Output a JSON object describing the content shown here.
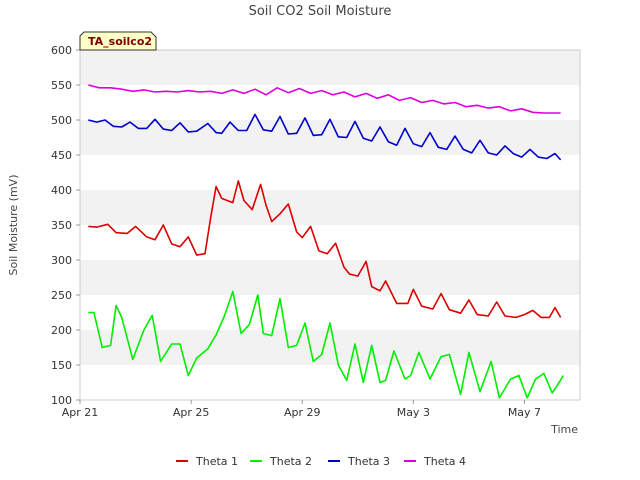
{
  "chart_data": {
    "type": "line",
    "title": "Soil CO2 Soil Moisture",
    "xlabel": "Time",
    "ylabel": "Soil Moisture (mV)",
    "station_tag": "TA_soilco2",
    "ylim": [
      100,
      600
    ],
    "yticks": [
      100,
      150,
      200,
      250,
      300,
      350,
      400,
      450,
      500,
      550,
      600
    ],
    "xlim": [
      0,
      18.0
    ],
    "xticks": [
      {
        "label": "Apr 21",
        "value": 0
      },
      {
        "label": "Apr 25",
        "value": 4
      },
      {
        "label": "Apr 29",
        "value": 8
      },
      {
        "label": "May 3",
        "value": 12
      },
      {
        "label": "May 7",
        "value": 16
      }
    ],
    "x_unit": "days since Apr 21 00:00",
    "grid": "horizontal alternating bands",
    "legend_position": "bottom",
    "series": [
      {
        "name": "Theta 1",
        "color": "#dd0000",
        "x": [
          0.3,
          0.6,
          1.0,
          1.3,
          1.7,
          2.0,
          2.4,
          2.7,
          3.0,
          3.3,
          3.6,
          3.9,
          4.2,
          4.5,
          4.7,
          4.9,
          5.1,
          5.3,
          5.5,
          5.7,
          5.9,
          6.2,
          6.5,
          6.7,
          6.9,
          7.2,
          7.5,
          7.8,
          8.0,
          8.3,
          8.6,
          8.9,
          9.2,
          9.5,
          9.7,
          10.0,
          10.3,
          10.5,
          10.8,
          11.0,
          11.4,
          11.8,
          12.0,
          12.3,
          12.7,
          13.0,
          13.3,
          13.7,
          14.0,
          14.3,
          14.7,
          15.0,
          15.3,
          15.7,
          16.0,
          16.3,
          16.6,
          16.9,
          17.1,
          17.3
        ],
        "y": [
          348,
          347,
          351,
          339,
          338,
          348,
          333,
          329,
          350,
          323,
          319,
          333,
          307,
          309,
          360,
          405,
          388,
          385,
          382,
          413,
          385,
          372,
          408,
          378,
          355,
          366,
          380,
          340,
          332,
          348,
          313,
          309,
          324,
          290,
          280,
          277,
          298,
          262,
          256,
          270,
          238,
          238,
          258,
          234,
          230,
          252,
          229,
          224,
          243,
          222,
          220,
          240,
          220,
          218,
          222,
          228,
          218,
          218,
          232,
          218
        ]
      },
      {
        "name": "Theta 2",
        "color": "#00ee00",
        "x": [
          0.3,
          0.5,
          0.8,
          1.1,
          1.3,
          1.5,
          1.9,
          2.3,
          2.6,
          2.9,
          3.3,
          3.6,
          3.9,
          4.2,
          4.6,
          4.9,
          5.2,
          5.5,
          5.8,
          6.1,
          6.4,
          6.6,
          6.9,
          7.2,
          7.5,
          7.8,
          8.1,
          8.4,
          8.7,
          9.0,
          9.3,
          9.6,
          9.9,
          10.2,
          10.5,
          10.8,
          11.0,
          11.3,
          11.7,
          11.9,
          12.2,
          12.6,
          13.0,
          13.3,
          13.7,
          14.0,
          14.4,
          14.8,
          15.1,
          15.5,
          15.8,
          16.1,
          16.4,
          16.7,
          17.0,
          17.2,
          17.4
        ],
        "y": [
          225,
          225,
          175,
          178,
          235,
          218,
          158,
          200,
          221,
          155,
          180,
          180,
          135,
          160,
          173,
          193,
          220,
          255,
          195,
          208,
          250,
          195,
          192,
          245,
          175,
          178,
          210,
          155,
          165,
          210,
          150,
          128,
          180,
          125,
          178,
          125,
          128,
          170,
          130,
          135,
          168,
          130,
          162,
          165,
          108,
          168,
          112,
          155,
          103,
          130,
          135,
          103,
          130,
          138,
          110,
          122,
          135
        ]
      },
      {
        "name": "Theta 3",
        "color": "#0000cc",
        "x": [
          0.3,
          0.6,
          0.9,
          1.2,
          1.5,
          1.8,
          2.1,
          2.4,
          2.7,
          3.0,
          3.3,
          3.6,
          3.9,
          4.2,
          4.6,
          4.9,
          5.1,
          5.4,
          5.7,
          6.0,
          6.3,
          6.6,
          6.9,
          7.2,
          7.5,
          7.8,
          8.1,
          8.4,
          8.7,
          9.0,
          9.3,
          9.6,
          9.9,
          10.2,
          10.5,
          10.8,
          11.1,
          11.4,
          11.7,
          12.0,
          12.3,
          12.6,
          12.9,
          13.2,
          13.5,
          13.8,
          14.1,
          14.4,
          14.7,
          15.0,
          15.3,
          15.6,
          15.9,
          16.2,
          16.5,
          16.8,
          17.1,
          17.3
        ],
        "y": [
          500,
          497,
          500,
          491,
          490,
          497,
          488,
          488,
          501,
          487,
          485,
          496,
          483,
          484,
          495,
          482,
          481,
          497,
          485,
          485,
          508,
          486,
          484,
          505,
          480,
          481,
          503,
          478,
          479,
          501,
          476,
          475,
          498,
          474,
          470,
          490,
          469,
          464,
          488,
          466,
          462,
          482,
          461,
          458,
          477,
          458,
          453,
          471,
          453,
          450,
          463,
          452,
          447,
          458,
          447,
          445,
          452,
          443
        ]
      },
      {
        "name": "Theta 4",
        "color": "#dd00dd",
        "x": [
          0.3,
          0.7,
          1.1,
          1.5,
          1.9,
          2.3,
          2.7,
          3.1,
          3.5,
          3.9,
          4.3,
          4.7,
          5.1,
          5.5,
          5.9,
          6.3,
          6.7,
          7.1,
          7.5,
          7.9,
          8.3,
          8.7,
          9.1,
          9.5,
          9.9,
          10.3,
          10.7,
          11.1,
          11.5,
          11.9,
          12.3,
          12.7,
          13.1,
          13.5,
          13.9,
          14.3,
          14.7,
          15.1,
          15.5,
          15.9,
          16.3,
          16.7,
          17.0,
          17.3
        ],
        "y": [
          550,
          546,
          546,
          544,
          541,
          543,
          540,
          541,
          540,
          542,
          540,
          541,
          538,
          543,
          538,
          544,
          536,
          546,
          539,
          545,
          538,
          542,
          536,
          540,
          533,
          538,
          531,
          536,
          528,
          532,
          525,
          528,
          523,
          525,
          519,
          521,
          517,
          519,
          513,
          516,
          511,
          510,
          510,
          510
        ]
      }
    ]
  }
}
